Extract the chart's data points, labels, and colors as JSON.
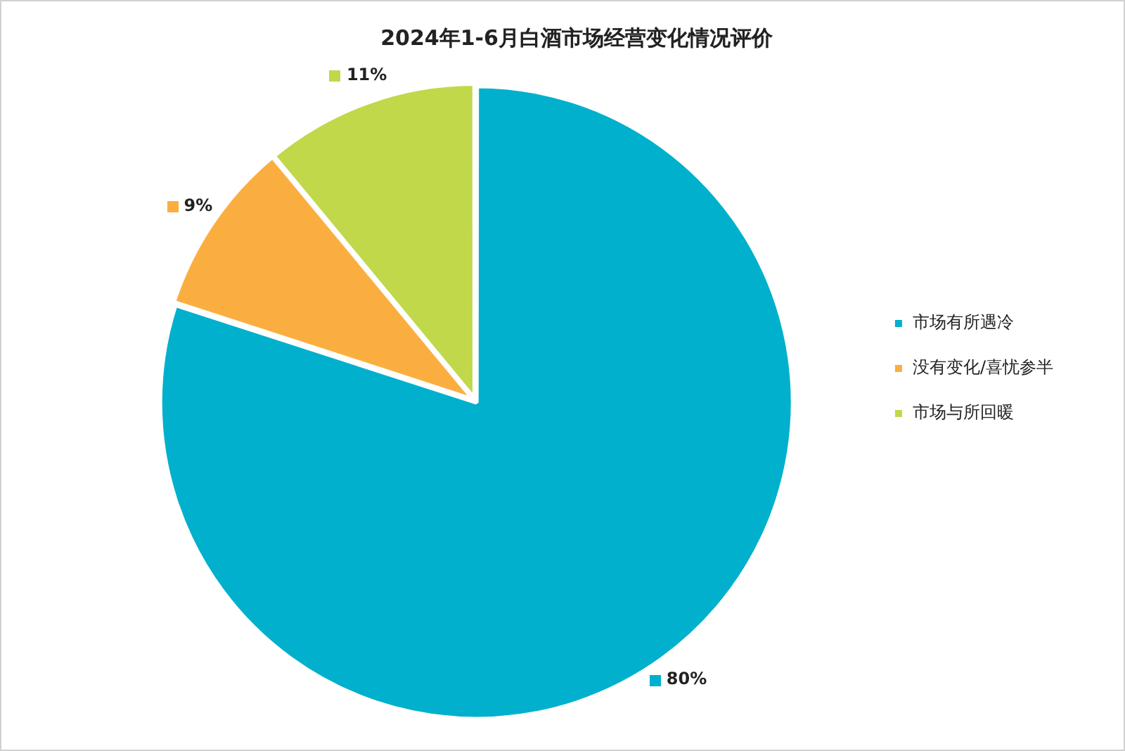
{
  "chart_data": {
    "type": "pie",
    "title": "2024年1-6月白酒市场经营变化情况评价",
    "categories": [
      "市场有所遇冷",
      "没有变化/喜忧参半",
      "市场与所回暖"
    ],
    "values": [
      80,
      9,
      11
    ],
    "colors": [
      "#00b0cc",
      "#fbae40",
      "#c0d84a"
    ],
    "value_labels": [
      "80%",
      "9%",
      "11%"
    ],
    "legend": "right"
  }
}
